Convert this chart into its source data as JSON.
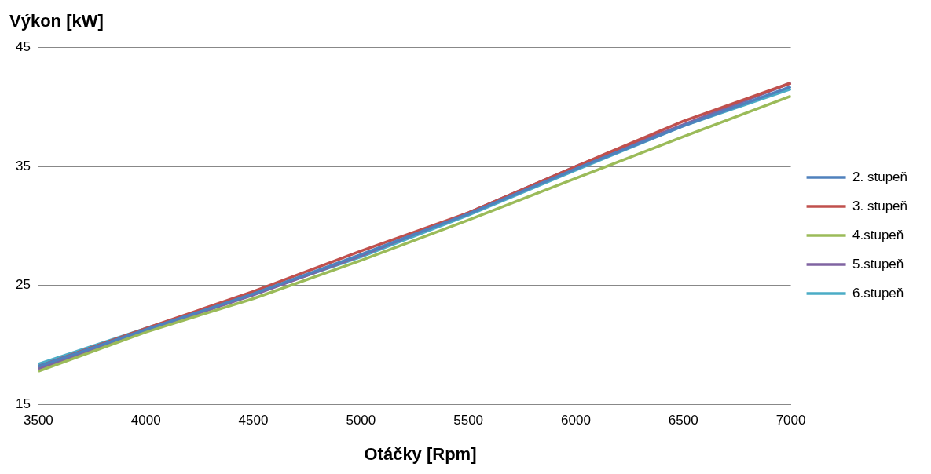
{
  "chart_data": {
    "type": "line",
    "ylabel": "Výkon [kW]",
    "xlabel": "Otáčky [Rpm]",
    "x": [
      3500,
      4000,
      4500,
      5000,
      5500,
      6000,
      6500,
      7000
    ],
    "series": [
      {
        "name": "2. stupeň",
        "color": "#4f81bd",
        "values": [
          18.2,
          21.3,
          24.3,
          27.6,
          31.0,
          34.8,
          38.4,
          41.7
        ]
      },
      {
        "name": "3. stupeň",
        "color": "#c0504d",
        "values": [
          18.2,
          21.4,
          24.5,
          27.9,
          31.1,
          35.0,
          38.8,
          42.0
        ]
      },
      {
        "name": "4.stupeň",
        "color": "#9bbb59",
        "values": [
          17.8,
          21.1,
          23.9,
          27.1,
          30.5,
          34.0,
          37.5,
          40.9
        ]
      },
      {
        "name": "5.stupeň",
        "color": "#8064a2",
        "values": [
          18.0,
          21.2,
          24.2,
          27.5,
          31.1,
          35.0,
          38.5,
          42.0
        ]
      },
      {
        "name": "6.stupeň",
        "color": "#4bacc6",
        "values": [
          18.4,
          21.4,
          24.3,
          27.4,
          30.9,
          34.7,
          38.4,
          41.5
        ]
      }
    ],
    "xlim": [
      3500,
      7000
    ],
    "xticks": [
      3500,
      4000,
      4500,
      5000,
      5500,
      6000,
      6500,
      7000
    ],
    "ylim": [
      15,
      45
    ],
    "yticks": [
      15,
      25,
      35,
      45
    ],
    "grid": "y",
    "legend": "right",
    "marker": "none",
    "line_style": "solid"
  }
}
